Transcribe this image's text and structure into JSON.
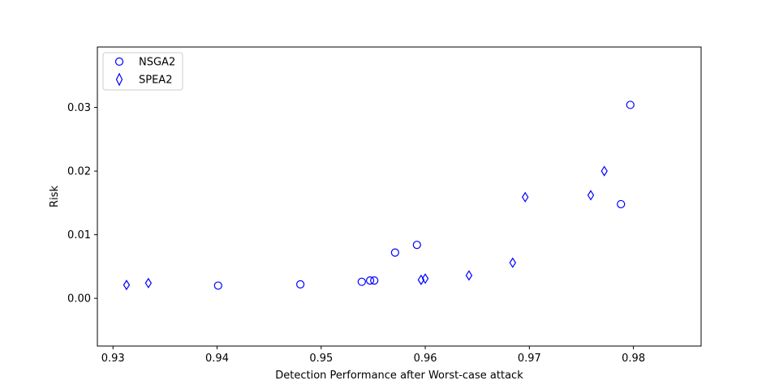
{
  "chart_data": {
    "type": "scatter",
    "xlabel": "Detection Performance after Worst-case attack",
    "ylabel": "Risk",
    "xlim": [
      0.9285,
      0.9865
    ],
    "ylim": [
      -0.0075,
      0.0395
    ],
    "xticks": [
      0.93,
      0.94,
      0.95,
      0.96,
      0.97,
      0.98
    ],
    "xtick_labels": [
      "0.93",
      "0.94",
      "0.95",
      "0.96",
      "0.97",
      "0.98"
    ],
    "yticks": [
      0.0,
      0.01,
      0.02,
      0.03
    ],
    "ytick_labels": [
      "0.00",
      "0.01",
      "0.02",
      "0.03"
    ],
    "grid": false,
    "legend_position": "top-left",
    "marker_color": "#0000ff",
    "series": [
      {
        "name": "NSGA2",
        "marker": "circle",
        "points": [
          [
            0.9401,
            0.002
          ],
          [
            0.948,
            0.0022
          ],
          [
            0.9539,
            0.0026
          ],
          [
            0.9547,
            0.0028
          ],
          [
            0.9551,
            0.0028
          ],
          [
            0.9571,
            0.0072
          ],
          [
            0.9592,
            0.0084
          ],
          [
            0.9788,
            0.0148
          ],
          [
            0.9797,
            0.0304
          ]
        ]
      },
      {
        "name": "SPEA2",
        "marker": "diamond",
        "points": [
          [
            0.9313,
            0.0021
          ],
          [
            0.9334,
            0.0024
          ],
          [
            0.9596,
            0.0029
          ],
          [
            0.96,
            0.0031
          ],
          [
            0.9642,
            0.0036
          ],
          [
            0.9684,
            0.0056
          ],
          [
            0.9696,
            0.0159
          ],
          [
            0.9759,
            0.0162
          ],
          [
            0.9772,
            0.02
          ]
        ]
      }
    ]
  }
}
